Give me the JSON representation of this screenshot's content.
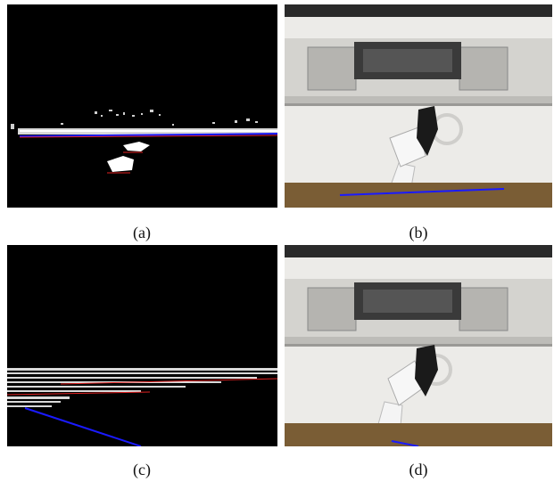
{
  "figure": {
    "panels": [
      {
        "id": "a",
        "caption": "(a)",
        "kind": "depth point cloud, side view"
      },
      {
        "id": "b",
        "caption": "(b)",
        "kind": "RGB camera view of oven with robot gripper"
      },
      {
        "id": "c",
        "caption": "(c)",
        "kind": "depth point cloud, side view"
      },
      {
        "id": "d",
        "caption": "(d)",
        "kind": "RGB camera view of oven with robot gripper"
      }
    ]
  },
  "colors": {
    "background": "#000000",
    "points": "#ffffff",
    "line_blue": "#1a1aff",
    "line_red": "#e02020",
    "oven_panel": "#e8e6e1",
    "floor": "#8a6a3c"
  }
}
